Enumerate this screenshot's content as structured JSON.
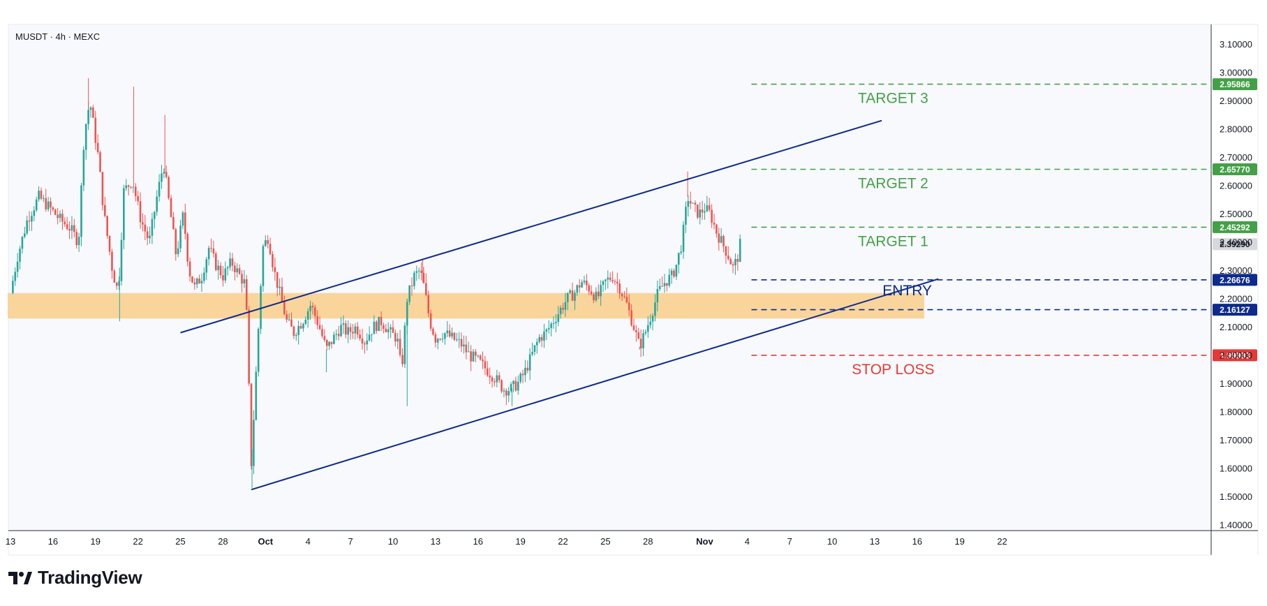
{
  "header": {
    "symbol_line": "MUSDT · 4h · MEXC"
  },
  "brand": {
    "name": "TradingView"
  },
  "colors": {
    "up": "#26a69a",
    "down": "#ef5350",
    "channel": "#0d2a8c",
    "zone": "#f9cf8a",
    "target": "#43a047",
    "entry": "#0d2a8c",
    "stop": "#e53935",
    "last_price_bg": "#d7d8dc"
  },
  "chart_data": {
    "type": "candlestick",
    "title": "MUSDT · 4h · MEXC",
    "ylim": [
      1.38,
      3.17
    ],
    "y_ticks": [
      "3.10000",
      "3.00000",
      "2.90000",
      "2.80000",
      "2.70000",
      "2.60000",
      "2.50000",
      "2.40000",
      "2.30000",
      "2.20000",
      "2.10000",
      "2.00000",
      "1.90000",
      "1.80000",
      "1.70000",
      "1.60000",
      "1.50000",
      "1.40000"
    ],
    "x_ticks": [
      {
        "label": "13",
        "day": 13
      },
      {
        "label": "16",
        "day": 16
      },
      {
        "label": "19",
        "day": 19
      },
      {
        "label": "22",
        "day": 22
      },
      {
        "label": "25",
        "day": 25
      },
      {
        "label": "28",
        "day": 28
      },
      {
        "label": "Oct",
        "day": 31,
        "bold": true
      },
      {
        "label": "4",
        "day": 34
      },
      {
        "label": "7",
        "day": 37
      },
      {
        "label": "10",
        "day": 40
      },
      {
        "label": "13",
        "day": 43
      },
      {
        "label": "16",
        "day": 46
      },
      {
        "label": "19",
        "day": 49
      },
      {
        "label": "22",
        "day": 52
      },
      {
        "label": "25",
        "day": 55
      },
      {
        "label": "28",
        "day": 58
      },
      {
        "label": "Nov",
        "day": 62,
        "bold": true
      },
      {
        "label": "4",
        "day": 65
      },
      {
        "label": "7",
        "day": 68
      },
      {
        "label": "10",
        "day": 71
      },
      {
        "label": "13",
        "day": 74
      },
      {
        "label": "16",
        "day": 77
      },
      {
        "label": "19",
        "day": 80
      },
      {
        "label": "22",
        "day": 83
      }
    ],
    "x_unit": "days from Sep 0",
    "anchors": [
      [
        13.0,
        2.22
      ],
      [
        13.5,
        2.35
      ],
      [
        14.2,
        2.48
      ],
      [
        15.0,
        2.56
      ],
      [
        15.8,
        2.52
      ],
      [
        16.5,
        2.48
      ],
      [
        17.2,
        2.45
      ],
      [
        17.8,
        2.4
      ],
      [
        18.2,
        2.78
      ],
      [
        18.6,
        2.9
      ],
      [
        19.2,
        2.7
      ],
      [
        19.6,
        2.5
      ],
      [
        20.2,
        2.3
      ],
      [
        20.6,
        2.22
      ],
      [
        21.0,
        2.58
      ],
      [
        21.6,
        2.62
      ],
      [
        22.2,
        2.48
      ],
      [
        22.8,
        2.4
      ],
      [
        23.3,
        2.55
      ],
      [
        23.8,
        2.68
      ],
      [
        24.3,
        2.5
      ],
      [
        24.7,
        2.35
      ],
      [
        25.2,
        2.5
      ],
      [
        25.6,
        2.3
      ],
      [
        26.0,
        2.24
      ],
      [
        26.5,
        2.28
      ],
      [
        27.0,
        2.38
      ],
      [
        27.5,
        2.32
      ],
      [
        28.0,
        2.28
      ],
      [
        28.6,
        2.33
      ],
      [
        29.2,
        2.28
      ],
      [
        29.6,
        2.25
      ],
      [
        30.0,
        1.62
      ],
      [
        30.4,
        2.0
      ],
      [
        30.8,
        2.38
      ],
      [
        31.2,
        2.42
      ],
      [
        31.6,
        2.3
      ],
      [
        32.0,
        2.22
      ],
      [
        32.5,
        2.12
      ],
      [
        33.0,
        2.08
      ],
      [
        33.6,
        2.12
      ],
      [
        34.2,
        2.18
      ],
      [
        34.8,
        2.1
      ],
      [
        35.3,
        2.02
      ],
      [
        35.8,
        2.06
      ],
      [
        36.3,
        2.1
      ],
      [
        36.8,
        2.08
      ],
      [
        37.4,
        2.1
      ],
      [
        38.0,
        2.05
      ],
      [
        38.6,
        2.1
      ],
      [
        39.2,
        2.12
      ],
      [
        39.8,
        2.08
      ],
      [
        40.3,
        2.06
      ],
      [
        40.6,
        1.94
      ],
      [
        41.0,
        2.2
      ],
      [
        41.5,
        2.28
      ],
      [
        41.9,
        2.3
      ],
      [
        42.2,
        2.24
      ],
      [
        42.6,
        2.12
      ],
      [
        43.0,
        2.06
      ],
      [
        43.6,
        2.08
      ],
      [
        44.2,
        2.06
      ],
      [
        44.8,
        2.04
      ],
      [
        45.4,
        2.0
      ],
      [
        46.0,
        1.98
      ],
      [
        46.6,
        1.95
      ],
      [
        47.2,
        1.92
      ],
      [
        47.8,
        1.88
      ],
      [
        48.3,
        1.88
      ],
      [
        48.8,
        1.9
      ],
      [
        49.3,
        1.94
      ],
      [
        49.8,
        2.0
      ],
      [
        50.3,
        2.06
      ],
      [
        50.8,
        2.08
      ],
      [
        51.3,
        2.12
      ],
      [
        51.8,
        2.16
      ],
      [
        52.3,
        2.2
      ],
      [
        52.8,
        2.22
      ],
      [
        53.3,
        2.26
      ],
      [
        53.8,
        2.24
      ],
      [
        54.4,
        2.2
      ],
      [
        55.0,
        2.26
      ],
      [
        55.5,
        2.28
      ],
      [
        56.0,
        2.24
      ],
      [
        56.5,
        2.18
      ],
      [
        57.0,
        2.1
      ],
      [
        57.4,
        2.03
      ],
      [
        57.8,
        2.08
      ],
      [
        58.2,
        2.14
      ],
      [
        58.7,
        2.22
      ],
      [
        59.2,
        2.26
      ],
      [
        59.7,
        2.28
      ],
      [
        60.0,
        2.32
      ],
      [
        60.4,
        2.4
      ],
      [
        60.8,
        2.56
      ],
      [
        61.2,
        2.52
      ],
      [
        61.6,
        2.5
      ],
      [
        62.0,
        2.52
      ],
      [
        62.4,
        2.5
      ],
      [
        62.8,
        2.44
      ],
      [
        63.2,
        2.4
      ],
      [
        63.6,
        2.36
      ],
      [
        64.0,
        2.31
      ],
      [
        64.3,
        2.34
      ],
      [
        64.5,
        2.39
      ]
    ],
    "extra_wicks": [
      {
        "day": 18.5,
        "high": 2.98
      },
      {
        "day": 21.7,
        "high": 2.95
      },
      {
        "day": 23.9,
        "high": 2.85
      },
      {
        "day": 30.05,
        "low": 1.53
      },
      {
        "day": 20.7,
        "low": 2.12
      },
      {
        "day": 35.3,
        "low": 1.94
      },
      {
        "day": 41.0,
        "low": 1.82
      },
      {
        "day": 48.4,
        "low": 1.82
      },
      {
        "day": 57.4,
        "low": 2.02
      },
      {
        "day": 60.8,
        "high": 2.65
      },
      {
        "day": 42.1,
        "high": 2.34
      }
    ],
    "channel_upper": {
      "from": {
        "day": 25.0,
        "price": 2.08
      },
      "to": {
        "day": 74.5,
        "price": 2.83
      }
    },
    "channel_lower": {
      "from": {
        "day": 30.0,
        "price": 1.525
      },
      "to": {
        "day": 78.5,
        "price": 2.27
      }
    },
    "zone": {
      "day_from": 13.0,
      "day_to": 77.5,
      "price_from": 2.13,
      "price_to": 2.22
    },
    "levels": [
      {
        "key": "target3",
        "price": 2.95866,
        "label": "TARGET 3",
        "value": "2.95866",
        "kind": "target"
      },
      {
        "key": "target2",
        "price": 2.6577,
        "label": "TARGET 2",
        "value": "2.65770",
        "kind": "target"
      },
      {
        "key": "target1",
        "price": 2.45292,
        "label": "TARGET 1",
        "value": "2.45292",
        "kind": "target"
      },
      {
        "key": "entry_high",
        "price": 2.26676,
        "label": "ENTRY",
        "value": "2.26676",
        "kind": "entry"
      },
      {
        "key": "entry_low",
        "price": 2.16127,
        "label": "",
        "value": "2.16127",
        "kind": "entry"
      },
      {
        "key": "stop",
        "price": 1.99993,
        "label": "STOP LOSS",
        "value": "1.99993",
        "kind": "stop"
      }
    ],
    "last_price": {
      "price": 2.3929,
      "value": "2.39290"
    }
  }
}
